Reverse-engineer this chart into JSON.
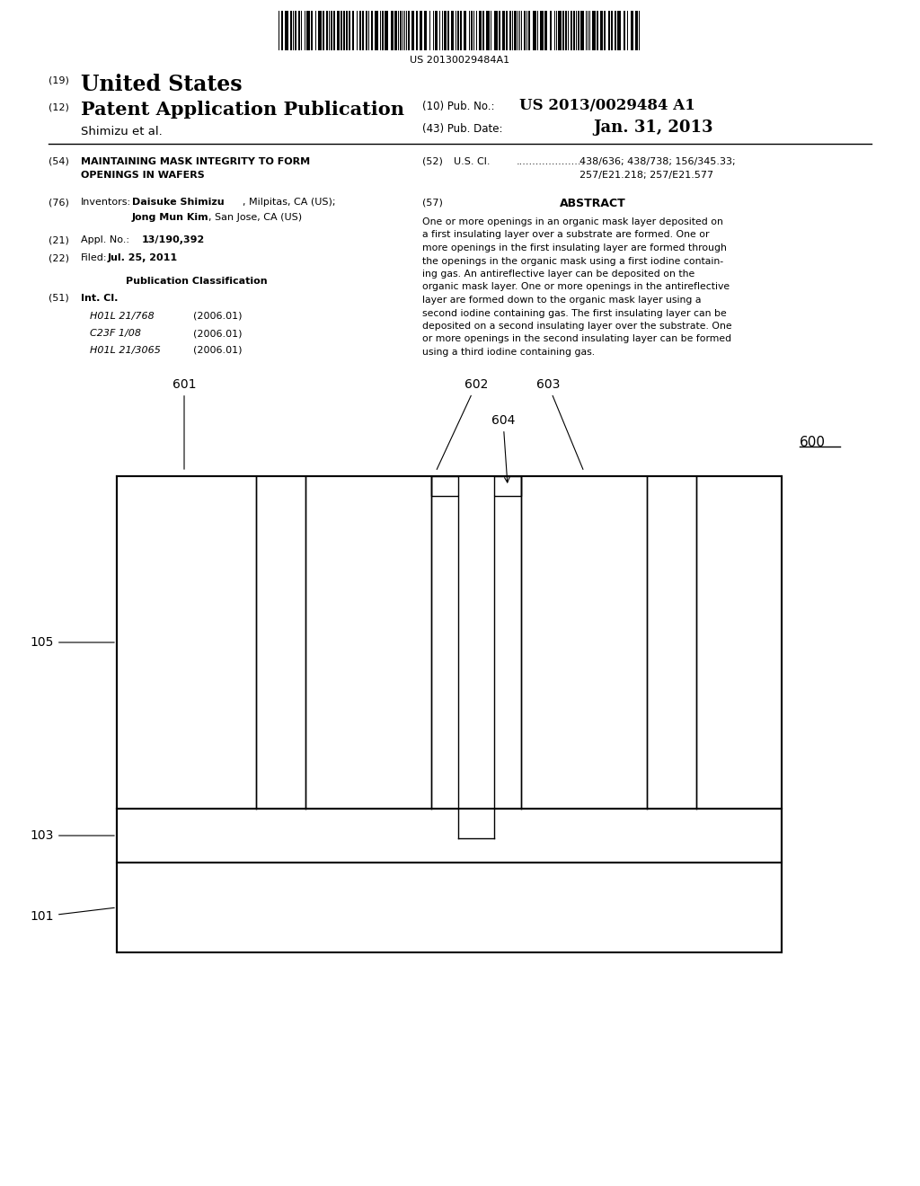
{
  "barcode_text": "US 20130029484A1",
  "section_19": "(19)",
  "country": "United States",
  "section_12": "(12)",
  "pub_label": "Patent Application Publication",
  "pub_no_label": "(10) Pub. No.:",
  "pub_number": "US 2013/0029484 A1",
  "pub_date_label": "(43) Pub. Date:",
  "pub_date": "Jan. 31, 2013",
  "author": "Shimizu et al.",
  "sec54_label": "(54)",
  "sec54_line1": "MAINTAINING MASK INTEGRITY TO FORM",
  "sec54_line2": "OPENINGS IN WAFERS",
  "sec52_label": "(52)",
  "sec52_title": "U.S. Cl.",
  "sec52_dots": ".....................",
  "sec52_value1": "438/636; 438/738; 156/345.33;",
  "sec52_value2": "257/E21.218; 257/E21.577",
  "sec76_label": "(76)",
  "sec76_title": "Inventors:",
  "sec76_name1": "Daisuke Shimizu",
  "sec76_loc1": ", Milpitas, CA (US);",
  "sec76_name2": "Jong Mun Kim",
  "sec76_loc2": ", San Jose, CA (US)",
  "sec21_label": "(21)",
  "sec21_title": "Appl. No.:",
  "sec21_value": "13/190,392",
  "sec22_label": "(22)",
  "sec22_title": "Filed:",
  "sec22_value": "Jul. 25, 2011",
  "pub_class_title": "Publication Classification",
  "sec51_label": "(51)",
  "sec51_title": "Int. Cl.",
  "sec51_entries": [
    [
      "H01L 21/768",
      "(2006.01)"
    ],
    [
      "C23F 1/08",
      "(2006.01)"
    ],
    [
      "H01L 21/3065",
      "(2006.01)"
    ]
  ],
  "sec57_label": "(57)",
  "abstract_title": "ABSTRACT",
  "abstract_lines": [
    "One or more openings in an organic mask layer deposited on",
    "a first insulating layer over a substrate are formed. One or",
    "more openings in the first insulating layer are formed through",
    "the openings in the organic mask using a first iodine contain-",
    "ing gas. An antireflective layer can be deposited on the",
    "organic mask layer. One or more openings in the antireflective",
    "layer are formed down to the organic mask layer using a",
    "second iodine containing gas. The first insulating layer can be",
    "deposited on a second insulating layer over the substrate. One",
    "or more openings in the second insulating layer can be formed",
    "using a third iodine containing gas."
  ],
  "bg_color": "#ffffff"
}
